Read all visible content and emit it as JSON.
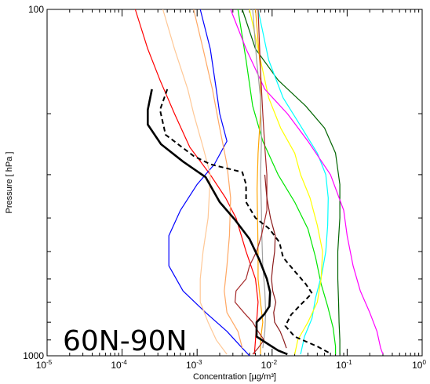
{
  "chart_data": {
    "type": "line",
    "xlabel": "Concentration [µg/m³]",
    "ylabel": "Pressure [ hPa ]",
    "annotation": "60N-90N",
    "x_scale": "log",
    "y_scale": "log",
    "xlim": [
      1e-05,
      1
    ],
    "ylim": [
      1000,
      100
    ],
    "x_ticks": [
      {
        "value": 1e-05,
        "base": "10",
        "exp": "-5"
      },
      {
        "value": 0.0001,
        "base": "10",
        "exp": "-4"
      },
      {
        "value": 0.001,
        "base": "10",
        "exp": "-3"
      },
      {
        "value": 0.01,
        "base": "10",
        "exp": "-2"
      },
      {
        "value": 0.1,
        "base": "10",
        "exp": "-1"
      },
      {
        "value": 1,
        "base": "10",
        "exp": "0"
      }
    ],
    "y_ticks": [
      {
        "value": 100,
        "label": "100"
      },
      {
        "value": 1000,
        "label": "1000"
      }
    ],
    "series": [
      {
        "color": "#ff0000",
        "width": 1.2,
        "dash": "",
        "points": [
          [
            0.00015,
            100
          ],
          [
            0.00022,
            130
          ],
          [
            0.00032,
            160
          ],
          [
            0.0005,
            200
          ],
          [
            0.0008,
            250
          ],
          [
            0.0015,
            300
          ],
          [
            0.0024,
            350
          ],
          [
            0.0033,
            400
          ],
          [
            0.0045,
            500
          ],
          [
            0.006,
            600
          ],
          [
            0.0065,
            700
          ],
          [
            0.0062,
            800
          ],
          [
            0.006,
            900
          ],
          [
            0.0058,
            990
          ]
        ]
      },
      {
        "color": "#0000ff",
        "width": 1.2,
        "dash": "",
        "points": [
          [
            0.0011,
            100
          ],
          [
            0.0015,
            130
          ],
          [
            0.0018,
            170
          ],
          [
            0.002,
            200
          ],
          [
            0.0025,
            240
          ],
          [
            0.0017,
            280
          ],
          [
            0.001,
            320
          ],
          [
            0.0006,
            380
          ],
          [
            0.00042,
            450
          ],
          [
            0.00042,
            550
          ],
          [
            0.00065,
            650
          ],
          [
            0.0013,
            750
          ],
          [
            0.0025,
            850
          ],
          [
            0.004,
            950
          ],
          [
            0.005,
            1000
          ]
        ]
      },
      {
        "color": "#ffc896",
        "width": 1.2,
        "dash": "",
        "points": [
          [
            0.00035,
            100
          ],
          [
            0.0005,
            130
          ],
          [
            0.00075,
            170
          ],
          [
            0.0009,
            200
          ],
          [
            0.0012,
            250
          ],
          [
            0.0015,
            300
          ],
          [
            0.0014,
            400
          ],
          [
            0.0012,
            500
          ],
          [
            0.0011,
            600
          ],
          [
            0.0011,
            700
          ],
          [
            0.0014,
            800
          ],
          [
            0.0018,
            900
          ],
          [
            0.0025,
            990
          ]
        ]
      },
      {
        "color": "#ffa864",
        "width": 1.2,
        "dash": "",
        "points": [
          [
            0.0009,
            100
          ],
          [
            0.0012,
            130
          ],
          [
            0.0016,
            170
          ],
          [
            0.002,
            220
          ],
          [
            0.0025,
            280
          ],
          [
            0.0028,
            350
          ],
          [
            0.0027,
            450
          ],
          [
            0.0025,
            550
          ],
          [
            0.0023,
            650
          ],
          [
            0.0025,
            750
          ],
          [
            0.0035,
            850
          ],
          [
            0.004,
            950
          ]
        ]
      },
      {
        "color": "#00e600",
        "width": 1.2,
        "dash": "",
        "points": [
          [
            0.0035,
            100
          ],
          [
            0.0045,
            140
          ],
          [
            0.0055,
            190
          ],
          [
            0.0075,
            240
          ],
          [
            0.012,
            300
          ],
          [
            0.02,
            360
          ],
          [
            0.03,
            430
          ],
          [
            0.038,
            520
          ],
          [
            0.045,
            620
          ],
          [
            0.055,
            720
          ],
          [
            0.065,
            830
          ],
          [
            0.07,
            940
          ],
          [
            0.07,
            990
          ]
        ]
      },
      {
        "color": "#006400",
        "width": 1.2,
        "dash": "",
        "points": [
          [
            0.004,
            100
          ],
          [
            0.006,
            130
          ],
          [
            0.012,
            160
          ],
          [
            0.028,
            190
          ],
          [
            0.05,
            220
          ],
          [
            0.07,
            260
          ],
          [
            0.08,
            320
          ],
          [
            0.08,
            400
          ],
          [
            0.075,
            500
          ],
          [
            0.075,
            600
          ],
          [
            0.077,
            700
          ],
          [
            0.078,
            800
          ],
          [
            0.08,
            900
          ],
          [
            0.08,
            990
          ]
        ]
      },
      {
        "color": "#00ffff",
        "width": 1.2,
        "dash": "",
        "points": [
          [
            0.0065,
            100
          ],
          [
            0.009,
            140
          ],
          [
            0.014,
            180
          ],
          [
            0.025,
            220
          ],
          [
            0.04,
            260
          ],
          [
            0.052,
            300
          ],
          [
            0.056,
            350
          ],
          [
            0.055,
            420
          ],
          [
            0.052,
            500
          ],
          [
            0.046,
            580
          ],
          [
            0.038,
            680
          ],
          [
            0.034,
            780
          ],
          [
            0.027,
            880
          ],
          [
            0.024,
            990
          ]
        ]
      },
      {
        "color": "#ffff00",
        "width": 1.2,
        "dash": "",
        "points": [
          [
            0.005,
            100
          ],
          [
            0.007,
            140
          ],
          [
            0.009,
            180
          ],
          [
            0.013,
            220
          ],
          [
            0.02,
            260
          ],
          [
            0.024,
            300
          ],
          [
            0.032,
            350
          ],
          [
            0.04,
            420
          ],
          [
            0.047,
            500
          ],
          [
            0.045,
            600
          ],
          [
            0.04,
            700
          ],
          [
            0.03,
            800
          ],
          [
            0.022,
            900
          ],
          [
            0.02,
            990
          ]
        ]
      },
      {
        "color": "#ff00ff",
        "width": 1.2,
        "dash": "",
        "points": [
          [
            0.0028,
            100
          ],
          [
            0.0045,
            130
          ],
          [
            0.008,
            170
          ],
          [
            0.016,
            200
          ],
          [
            0.03,
            240
          ],
          [
            0.06,
            300
          ],
          [
            0.09,
            380
          ],
          [
            0.1,
            450
          ],
          [
            0.12,
            550
          ],
          [
            0.15,
            650
          ],
          [
            0.2,
            750
          ],
          [
            0.25,
            850
          ],
          [
            0.28,
            950
          ],
          [
            0.3,
            990
          ]
        ]
      },
      {
        "color": "#ffa500",
        "width": 1.2,
        "dash": "",
        "points": [
          [
            0.006,
            100
          ],
          [
            0.007,
            150
          ],
          [
            0.007,
            200
          ],
          [
            0.0065,
            260
          ],
          [
            0.0063,
            330
          ],
          [
            0.0064,
            410
          ],
          [
            0.0065,
            500
          ],
          [
            0.0065,
            600
          ],
          [
            0.007,
            700
          ],
          [
            0.0075,
            800
          ],
          [
            0.007,
            900
          ],
          [
            0.007,
            990
          ]
        ]
      },
      {
        "color": "#a0a0a0",
        "width": 1.2,
        "dash": "",
        "points": [
          [
            0.0055,
            100
          ],
          [
            0.0062,
            140
          ],
          [
            0.007,
            180
          ],
          [
            0.0072,
            240
          ],
          [
            0.007,
            300
          ],
          [
            0.0072,
            380
          ],
          [
            0.0073,
            450
          ],
          [
            0.0075,
            550
          ],
          [
            0.008,
            650
          ],
          [
            0.0082,
            750
          ],
          [
            0.008,
            850
          ],
          [
            0.0075,
            950
          ]
        ]
      },
      {
        "color": "#a52a2a",
        "width": 1.2,
        "dash": "",
        "points": [
          [
            0.0065,
            100
          ],
          [
            0.007,
            150
          ],
          [
            0.0075,
            200
          ],
          [
            0.008,
            250
          ],
          [
            0.0085,
            300
          ],
          [
            0.0085,
            380
          ],
          [
            0.0072,
            450
          ],
          [
            0.0062,
            500
          ],
          [
            0.005,
            550
          ],
          [
            0.0045,
            600
          ],
          [
            0.0033,
            650
          ],
          [
            0.0032,
            700
          ],
          [
            0.0042,
            750
          ],
          [
            0.0055,
            800
          ],
          [
            0.0065,
            850
          ],
          [
            0.0078,
            900
          ],
          [
            0.0065,
            950
          ],
          [
            0.0055,
            990
          ]
        ]
      },
      {
        "color": "#8b1a1a",
        "width": 1.2,
        "dash": "",
        "points": [
          [
            0.008,
            300
          ],
          [
            0.0085,
            350
          ],
          [
            0.0095,
            400
          ],
          [
            0.011,
            450
          ],
          [
            0.0108,
            500
          ],
          [
            0.0102,
            550
          ],
          [
            0.0098,
            600
          ],
          [
            0.0102,
            650
          ],
          [
            0.0112,
            700
          ],
          [
            0.0105,
            750
          ],
          [
            0.0108,
            800
          ],
          [
            0.0128,
            850
          ],
          [
            0.0142,
            900
          ],
          [
            0.0155,
            950
          ]
        ]
      },
      {
        "color": "#000000",
        "width": 2.6,
        "dash": "",
        "points": [
          [
            0.00025,
            170
          ],
          [
            0.00022,
            195
          ],
          [
            0.00022,
            215
          ],
          [
            0.00033,
            245
          ],
          [
            0.00065,
            275
          ],
          [
            0.0013,
            305
          ],
          [
            0.002,
            360
          ],
          [
            0.0032,
            405
          ],
          [
            0.005,
            460
          ],
          [
            0.0068,
            530
          ],
          [
            0.0085,
            600
          ],
          [
            0.0094,
            655
          ],
          [
            0.0092,
            720
          ],
          [
            0.0078,
            760
          ],
          [
            0.0062,
            800
          ],
          [
            0.0062,
            880
          ],
          [
            0.0092,
            930
          ],
          [
            0.012,
            965
          ],
          [
            0.016,
            990
          ]
        ]
      },
      {
        "color": "#000000",
        "width": 2.0,
        "dash": "6,4",
        "points": [
          [
            0.0004,
            170
          ],
          [
            0.00032,
            195
          ],
          [
            0.00038,
            230
          ],
          [
            0.0009,
            265
          ],
          [
            0.0015,
            280
          ],
          [
            0.004,
            295
          ],
          [
            0.0045,
            320
          ],
          [
            0.0045,
            360
          ],
          [
            0.006,
            400
          ],
          [
            0.0092,
            430
          ],
          [
            0.0125,
            470
          ],
          [
            0.014,
            520
          ],
          [
            0.02,
            570
          ],
          [
            0.028,
            620
          ],
          [
            0.034,
            660
          ],
          [
            0.026,
            700
          ],
          [
            0.018,
            760
          ],
          [
            0.015,
            820
          ],
          [
            0.02,
            880
          ],
          [
            0.04,
            940
          ],
          [
            0.06,
            985
          ]
        ]
      }
    ]
  }
}
